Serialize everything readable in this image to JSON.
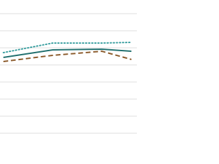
{
  "chart_data": {
    "type": "line",
    "x": [
      0,
      1,
      2,
      2.6
    ],
    "xlim": [
      0,
      2.6
    ],
    "ylim": [
      0,
      7
    ],
    "yticks": [
      0,
      1,
      2,
      3,
      4,
      5,
      6,
      7
    ],
    "grid": true,
    "series": [
      {
        "color": "#3a9fa0",
        "style": "dotted",
        "values": [
          4.72,
          5.28,
          5.28,
          5.32
        ]
      },
      {
        "color": "#1f6f6e",
        "style": "solid",
        "values": [
          4.44,
          4.88,
          4.92,
          4.8
        ]
      },
      {
        "color": "#8b5a2b",
        "style": "dashed",
        "values": [
          4.2,
          4.56,
          4.8,
          4.32
        ]
      }
    ]
  }
}
